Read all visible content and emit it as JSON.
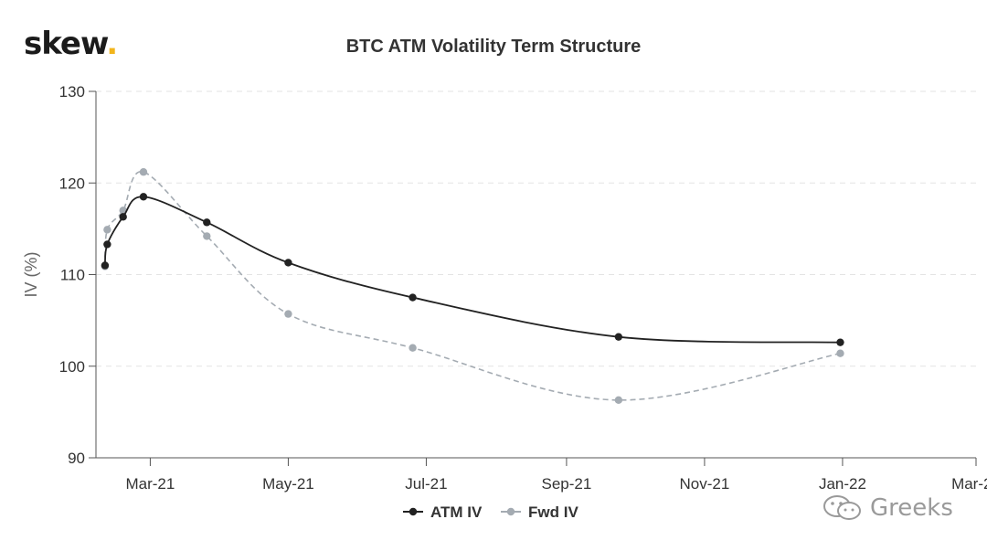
{
  "brand": {
    "name": "skew",
    "dot": "."
  },
  "watermark": {
    "text": "Greeks",
    "icon": "wechat-icon"
  },
  "chart_data": {
    "type": "line",
    "title": "BTC ATM Volatility Term Structure",
    "xlabel": "",
    "ylabel": "IV (%)",
    "ylim": [
      90,
      130
    ],
    "yticks": [
      90,
      100,
      110,
      120,
      130
    ],
    "xlim": [
      "2021-02-05",
      "2022-03-01"
    ],
    "xticks": [
      {
        "date": "2021-03-01",
        "label": "Mar-21"
      },
      {
        "date": "2021-05-01",
        "label": "May-21"
      },
      {
        "date": "2021-07-01",
        "label": "Jul-21"
      },
      {
        "date": "2021-09-01",
        "label": "Sep-21"
      },
      {
        "date": "2021-11-01",
        "label": "Nov-21"
      },
      {
        "date": "2022-01-01",
        "label": "Jan-22"
      },
      {
        "date": "2022-03-01",
        "label": "Mar-22"
      }
    ],
    "grid": "horizontal-dashed",
    "legend": "bottom-center",
    "series": [
      {
        "name": "ATM IV",
        "color": "#222222",
        "dashed": false,
        "points": [
          {
            "x": "2021-02-09",
            "y": 111.0
          },
          {
            "x": "2021-02-10",
            "y": 113.3
          },
          {
            "x": "2021-02-17",
            "y": 116.3
          },
          {
            "x": "2021-02-26",
            "y": 118.5
          },
          {
            "x": "2021-03-26",
            "y": 115.7
          },
          {
            "x": "2021-05-01",
            "y": 111.3
          },
          {
            "x": "2021-06-25",
            "y": 107.5
          },
          {
            "x": "2021-09-24",
            "y": 103.2
          },
          {
            "x": "2021-12-31",
            "y": 102.6
          }
        ]
      },
      {
        "name": "Fwd IV",
        "color": "#a4abb2",
        "dashed": true,
        "points": [
          {
            "x": "2021-02-09",
            "y": 110.9
          },
          {
            "x": "2021-02-10",
            "y": 114.9
          },
          {
            "x": "2021-02-17",
            "y": 117.0
          },
          {
            "x": "2021-02-26",
            "y": 121.2
          },
          {
            "x": "2021-03-26",
            "y": 114.2
          },
          {
            "x": "2021-05-01",
            "y": 105.7
          },
          {
            "x": "2021-06-25",
            "y": 102.0
          },
          {
            "x": "2021-09-24",
            "y": 96.3
          },
          {
            "x": "2021-12-31",
            "y": 101.4
          }
        ]
      }
    ]
  }
}
